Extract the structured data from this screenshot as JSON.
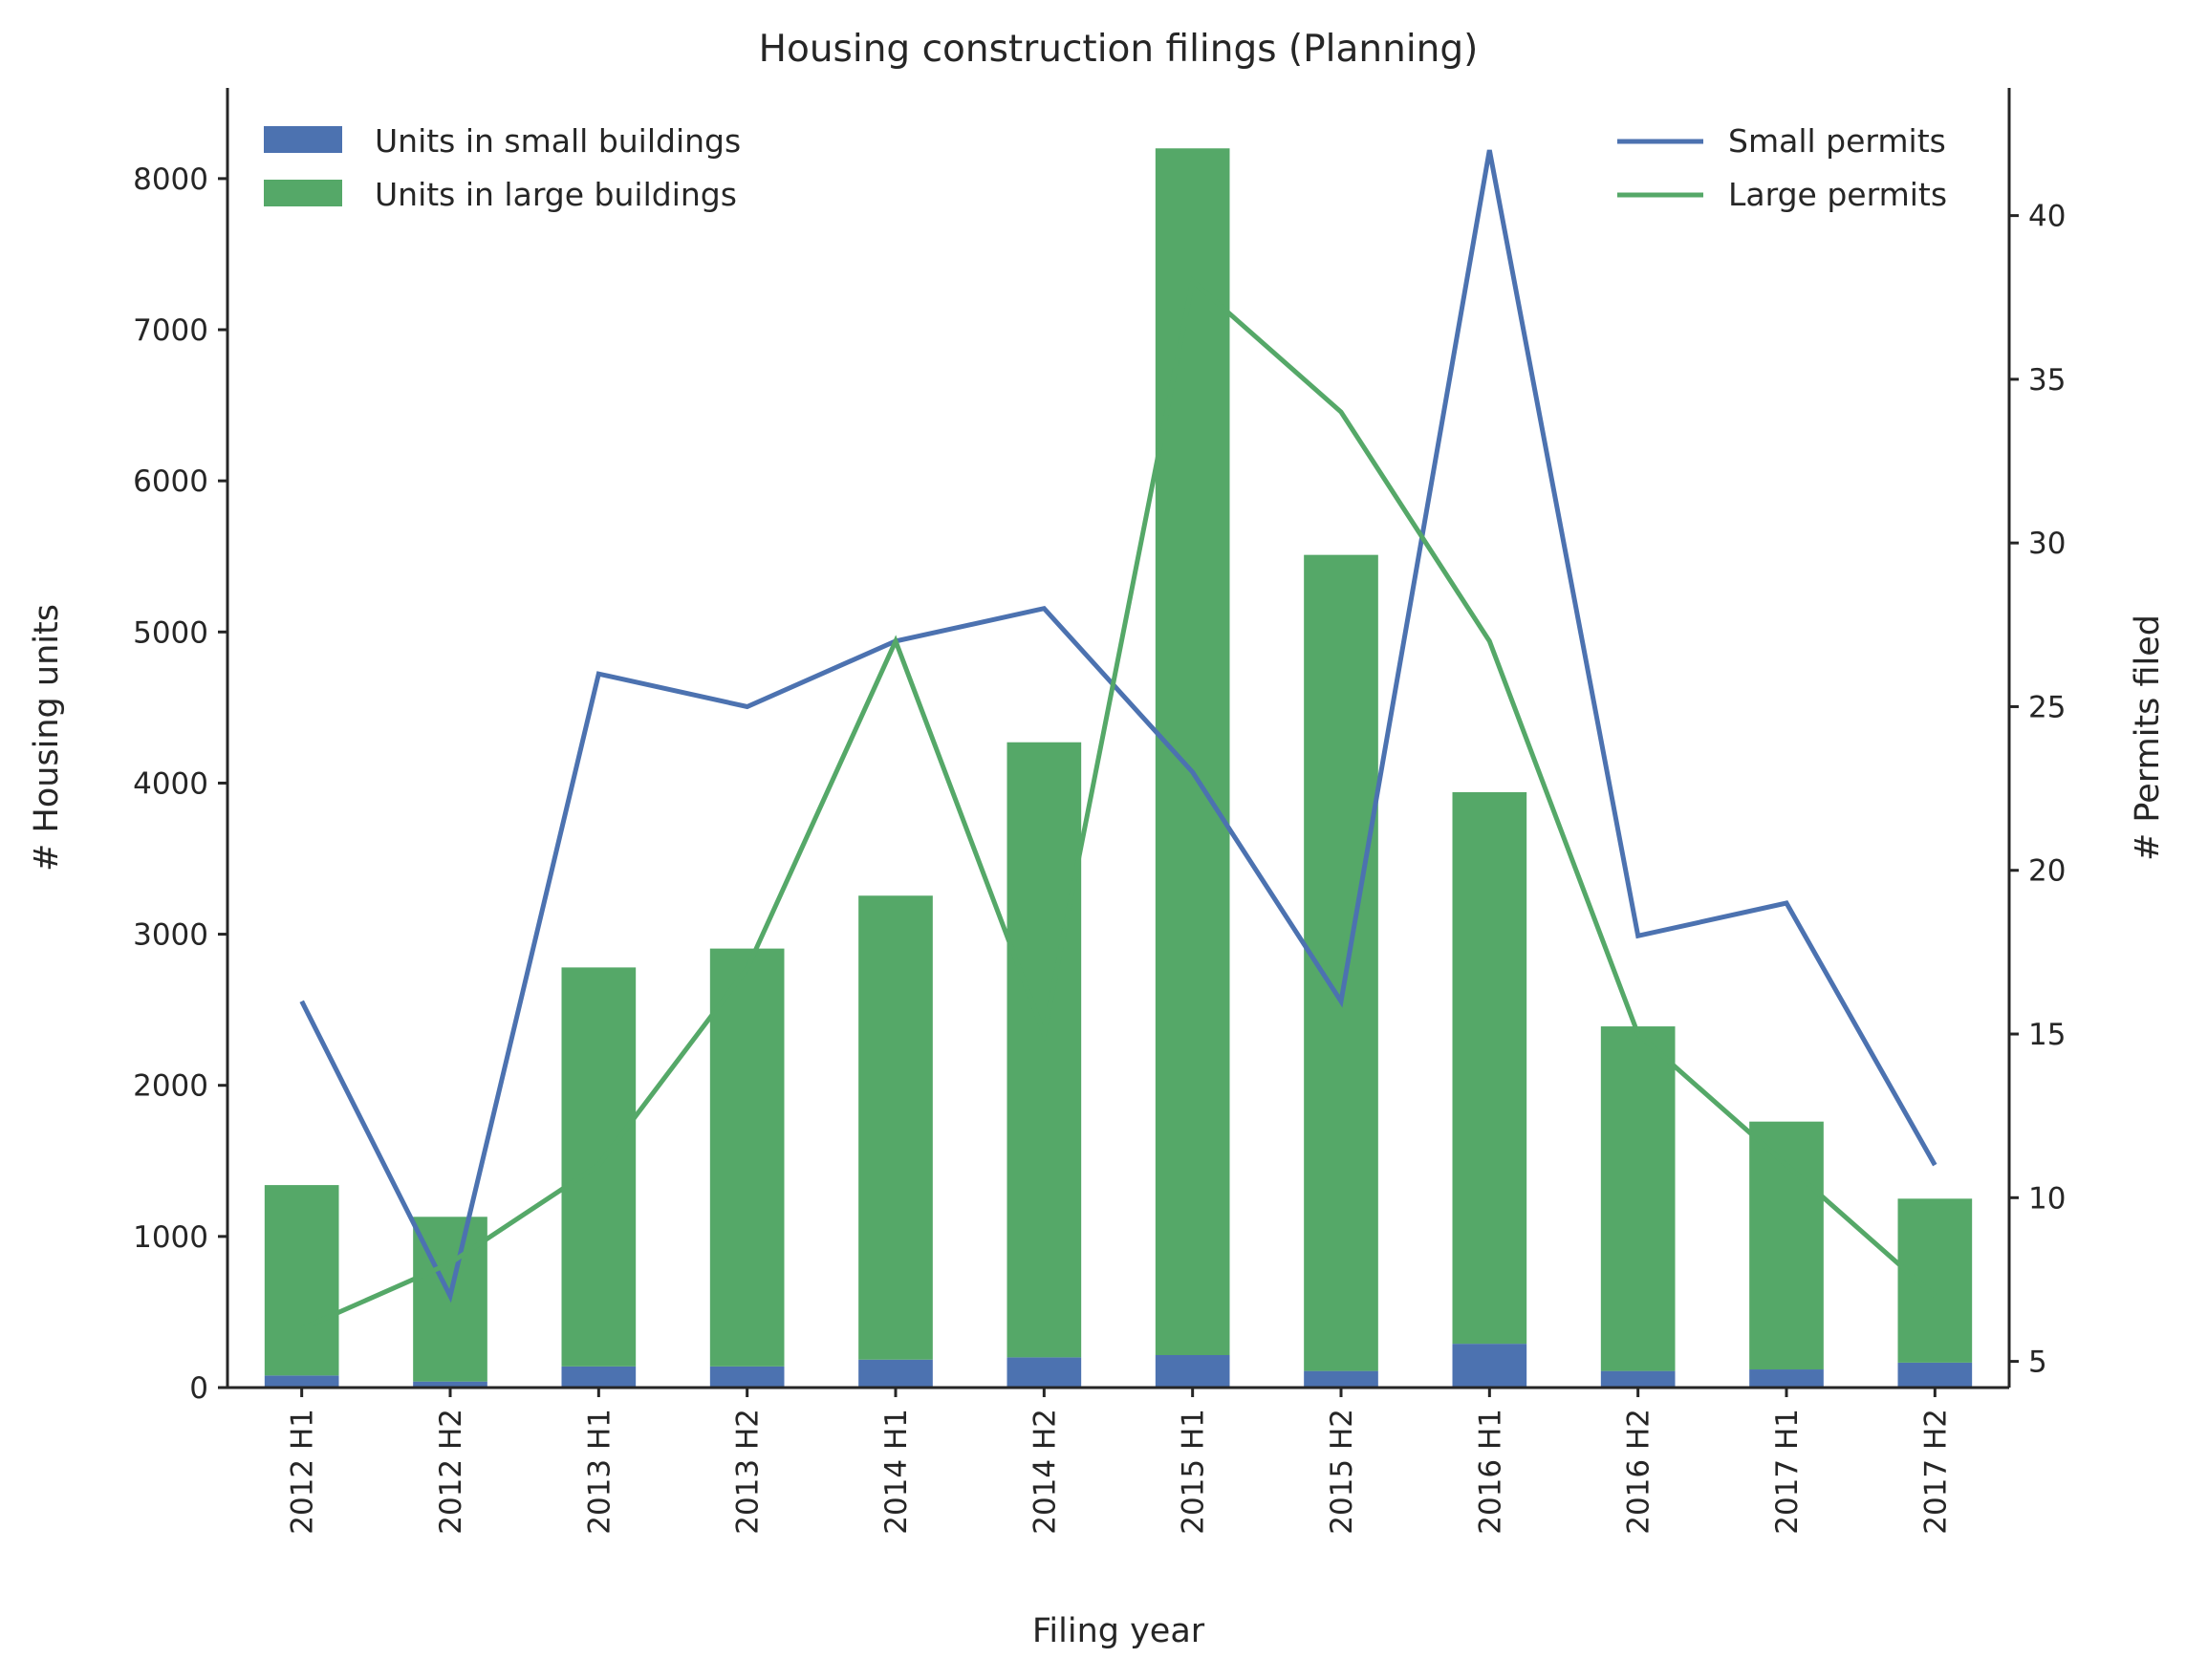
{
  "colors": {
    "small": "#4c72b0",
    "large": "#55a868",
    "axis": "#262626",
    "background": "#ffffff"
  },
  "chart_data": {
    "type": "bar",
    "title": "Housing construction filings (Planning)",
    "xlabel": "Filing year",
    "ylabel": "# Housing units",
    "y2label": "# Permits filed",
    "categories": [
      "2012 H1",
      "2012 H2",
      "2013 H1",
      "2013 H2",
      "2014 H1",
      "2014 H2",
      "2015 H1",
      "2015 H2",
      "2016 H1",
      "2016 H2",
      "2017 H1",
      "2017 H2"
    ],
    "ylim": [
      0,
      8600
    ],
    "y2lim": [
      4.2,
      43.9
    ],
    "yticks": [
      0,
      1000,
      2000,
      3000,
      4000,
      5000,
      6000,
      7000,
      8000
    ],
    "y2ticks": [
      5,
      10,
      15,
      20,
      25,
      30,
      35,
      40
    ],
    "grid": false,
    "stacked": true,
    "bar_series": [
      {
        "name": "Units in small buildings",
        "color": "#4c72b0",
        "values": [
          80,
          40,
          140,
          140,
          185,
          200,
          215,
          110,
          290,
          110,
          120,
          165
        ]
      },
      {
        "name": "Units in large buildings",
        "color": "#55a868",
        "values": [
          1260,
          1090,
          2640,
          2765,
          3070,
          4070,
          7985,
          5400,
          3650,
          2280,
          1640,
          1085
        ]
      }
    ],
    "line_series": [
      {
        "name": "Small permits",
        "color": "#4c72b0",
        "axis": "right",
        "values": [
          16,
          7,
          26,
          25,
          27,
          28,
          23,
          16,
          42,
          18,
          19,
          11
        ]
      },
      {
        "name": "Large permits",
        "color": "#55a868",
        "axis": "right",
        "values": [
          6,
          8,
          11,
          17,
          27,
          15,
          38,
          34,
          27,
          15,
          11,
          7
        ]
      }
    ],
    "legends": [
      {
        "position": "top-left",
        "kind": "patch",
        "entries": [
          "Units in small buildings",
          "Units in large buildings"
        ]
      },
      {
        "position": "top-right",
        "kind": "line",
        "entries": [
          "Small permits",
          "Large permits"
        ]
      }
    ]
  }
}
